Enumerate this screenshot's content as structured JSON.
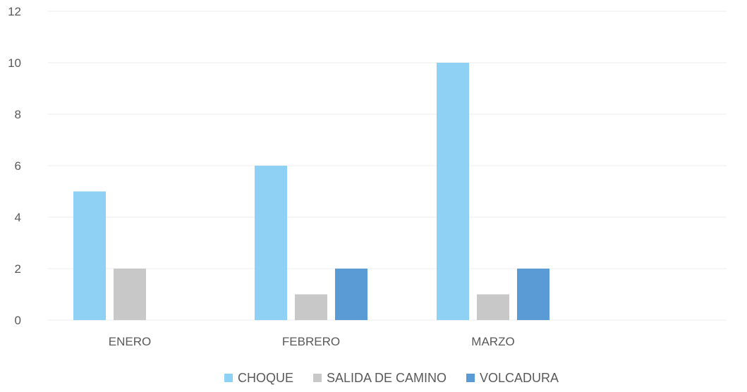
{
  "chart_data": {
    "type": "bar",
    "title": "",
    "xlabel": "",
    "ylabel": "",
    "categories": [
      "ENERO",
      "FEBRERO",
      "MARZO"
    ],
    "series": [
      {
        "name": "CHOQUE",
        "color": "#8fd1f5",
        "values": [
          5,
          6,
          10
        ]
      },
      {
        "name": "SALIDA DE CAMINO",
        "color": "#c8c8c8",
        "values": [
          2,
          1,
          1
        ]
      },
      {
        "name": "VOLCADURA",
        "color": "#5b9bd5",
        "values": [
          0,
          2,
          2
        ]
      }
    ],
    "ylim": [
      0,
      12
    ],
    "yticks": [
      0,
      2,
      4,
      6,
      8,
      10,
      12
    ],
    "grid": true,
    "legend_position": "bottom"
  }
}
